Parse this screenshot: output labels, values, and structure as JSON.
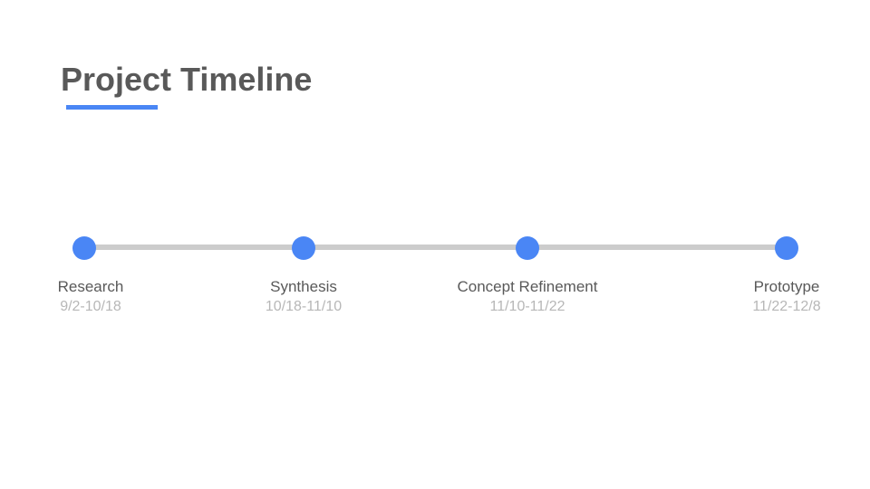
{
  "title": "Project Timeline",
  "colors": {
    "accent": "#4a86f5",
    "track": "#cccccc",
    "title_text": "#595959",
    "label_text": "#595959",
    "date_text": "#b7b7b7"
  },
  "milestones": [
    {
      "label": "Research",
      "dates": "9/2-10/18"
    },
    {
      "label": "Synthesis",
      "dates": "10/18-11/10"
    },
    {
      "label": "Concept Refinement",
      "dates": "11/10-11/22"
    },
    {
      "label": "Prototype",
      "dates": "11/22-12/8"
    }
  ]
}
